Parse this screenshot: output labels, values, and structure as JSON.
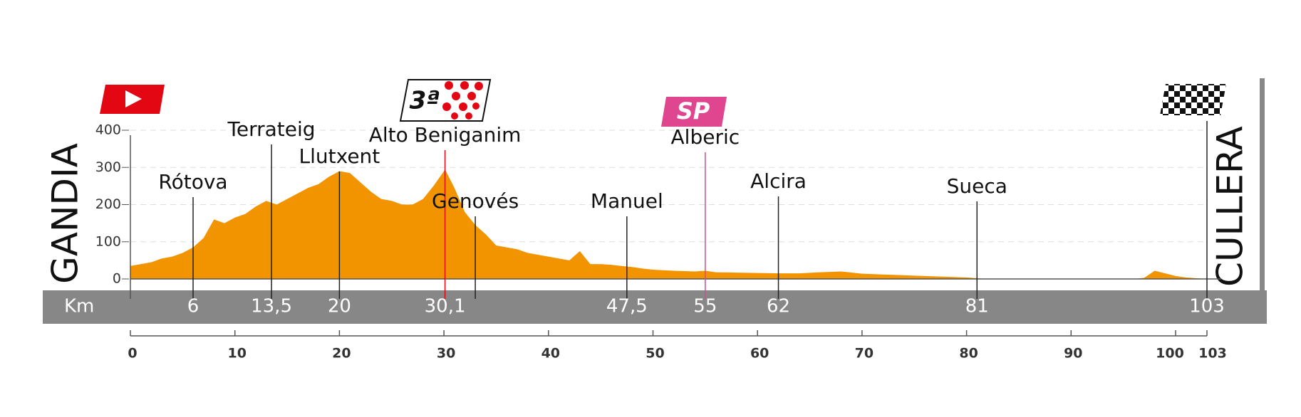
{
  "chart_data": {
    "type": "area",
    "color": "#f29400",
    "x": [
      0,
      1,
      2,
      3,
      4,
      5,
      6,
      7,
      8,
      9,
      10,
      11,
      12,
      13,
      14,
      15,
      16,
      17,
      18,
      19,
      20,
      21,
      22,
      23,
      24,
      25,
      26,
      27,
      28,
      29,
      30,
      30.1,
      31,
      32,
      33,
      34,
      35,
      36,
      37,
      38,
      39,
      40,
      41,
      42,
      43,
      44,
      45,
      46,
      47,
      48,
      49,
      50,
      52,
      54,
      55,
      56,
      58,
      60,
      62,
      64,
      66,
      68,
      70,
      72,
      74,
      76,
      78,
      80,
      81,
      82,
      90,
      96,
      97,
      98,
      99,
      100,
      101,
      102,
      103
    ],
    "values": [
      35,
      40,
      45,
      55,
      60,
      70,
      85,
      110,
      160,
      150,
      165,
      175,
      195,
      210,
      200,
      215,
      230,
      245,
      255,
      275,
      290,
      285,
      260,
      235,
      215,
      210,
      200,
      200,
      215,
      250,
      290,
      295,
      245,
      180,
      145,
      120,
      90,
      85,
      80,
      70,
      65,
      60,
      55,
      50,
      75,
      40,
      40,
      38,
      35,
      32,
      28,
      25,
      22,
      20,
      22,
      18,
      17,
      16,
      15,
      15,
      18,
      20,
      14,
      12,
      10,
      8,
      6,
      4,
      2,
      0,
      0,
      0,
      3,
      22,
      15,
      8,
      4,
      2,
      0
    ],
    "xlim": [
      0,
      103
    ],
    "ylim": [
      0,
      400
    ],
    "yticks": [
      0,
      100,
      200,
      300,
      400
    ],
    "xticks": [
      0,
      10,
      20,
      30,
      40,
      50,
      60,
      70,
      80,
      90,
      100,
      103
    ],
    "grid": true,
    "start": "GANDIA",
    "finish": "CULLERA",
    "km_label": "Km",
    "climb_category": "3ª",
    "sprint_label": "SP",
    "waypoints": [
      {
        "name": "Rótova",
        "km": {
          "value": 6,
          "label": "6"
        },
        "color": "#222222"
      },
      {
        "name": "Terrateig",
        "km": {
          "value": 13.5,
          "label": "13,5"
        },
        "color": "#222222"
      },
      {
        "name": "Llutxent",
        "km": {
          "value": 20,
          "label": "20"
        },
        "color": "#222222"
      },
      {
        "name": "Alto Beniganim",
        "km": {
          "value": 30.1,
          "label": "30,1"
        },
        "color": "#e30613"
      },
      {
        "name": "Genovés",
        "km": {
          "value": 33,
          "label": null
        },
        "color": "#222222"
      },
      {
        "name": "Manuel",
        "km": {
          "value": 47.5,
          "label": "47,5"
        },
        "color": "#222222"
      },
      {
        "name": "Alberic",
        "km": {
          "value": 55,
          "label": "55"
        },
        "color": "#e0458f"
      },
      {
        "name": "Alcira",
        "km": {
          "value": 62,
          "label": "62"
        },
        "color": "#222222"
      },
      {
        "name": "Sueca",
        "km": {
          "value": 81,
          "label": "81"
        },
        "color": "#222222"
      }
    ],
    "finish_km": {
      "value": 103,
      "label": "103"
    }
  }
}
